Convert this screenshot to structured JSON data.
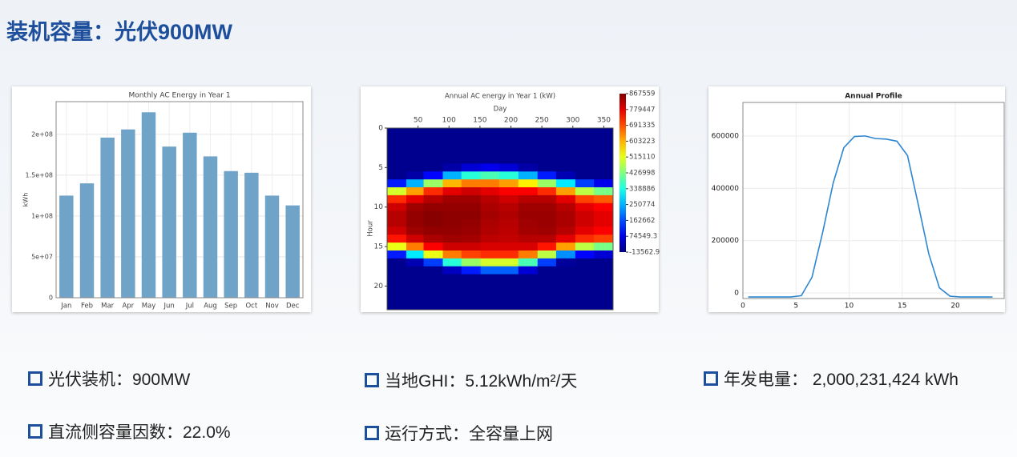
{
  "title": "装机容量：光伏900MW",
  "stats": [
    "光伏装机：900MW",
    "当地GHI：5.12kWh/m²/天",
    "年发电量： 2,000,231,424 kWh",
    "直流侧容量因数：22.0%",
    "运行方式：全容量上网"
  ],
  "chart_data": [
    {
      "type": "bar",
      "title": "Monthly AC Energy in Year 1",
      "ylabel": "kWh",
      "categories": [
        "Jan",
        "Feb",
        "Mar",
        "Apr",
        "May",
        "Jun",
        "Jul",
        "Aug",
        "Sep",
        "Oct",
        "Nov",
        "Dec"
      ],
      "values": [
        125000000,
        140000000,
        196000000,
        206000000,
        227000000,
        185000000,
        202000000,
        173000000,
        155000000,
        153000000,
        125000000,
        113000000
      ],
      "color": "#6fa3c8",
      "ylim": [
        0,
        240000000
      ],
      "yticks": [
        0,
        {
          "value": 50000000,
          "label": "5e+07"
        },
        {
          "value": 100000000,
          "label": "1e+08"
        },
        {
          "value": 150000000,
          "label": "1.5e+08"
        },
        {
          "value": 200000000,
          "label": "2e+08"
        }
      ],
      "grid": true
    },
    {
      "type": "heatmap",
      "title": "Annual AC energy in Year 1 (kW)",
      "xlabel": "Day",
      "ylabel": "Hour",
      "xbins": [
        0,
        31,
        59,
        90,
        120,
        151,
        181,
        212,
        243,
        273,
        304,
        334,
        365
      ],
      "y": [
        0,
        1,
        2,
        3,
        4,
        5,
        6,
        7,
        8,
        9,
        10,
        11,
        12,
        13,
        14,
        15,
        16,
        17,
        18,
        19,
        20,
        21,
        22,
        23
      ],
      "values": [
        [
          0,
          0,
          0,
          0,
          0,
          0,
          0,
          0,
          0,
          0,
          0,
          0
        ],
        [
          0,
          0,
          0,
          0,
          0,
          0,
          0,
          0,
          0,
          0,
          0,
          0
        ],
        [
          0,
          0,
          0,
          0,
          0,
          0,
          0,
          0,
          0,
          0,
          0,
          0
        ],
        [
          0,
          0,
          0,
          0,
          0,
          0,
          0,
          0,
          0,
          0,
          0,
          0
        ],
        [
          0,
          0,
          0,
          0,
          0,
          0,
          0,
          0,
          0,
          0,
          0,
          0
        ],
        [
          0,
          0,
          0,
          20000,
          60000,
          80000,
          60000,
          20000,
          0,
          0,
          0,
          0
        ],
        [
          0,
          20000,
          100000,
          250000,
          350000,
          380000,
          350000,
          250000,
          120000,
          30000,
          0,
          0
        ],
        [
          120000,
          250000,
          450000,
          600000,
          650000,
          650000,
          620000,
          550000,
          450000,
          300000,
          150000,
          80000
        ],
        [
          500000,
          620000,
          720000,
          780000,
          800000,
          780000,
          760000,
          760000,
          720000,
          620000,
          480000,
          420000
        ],
        [
          720000,
          780000,
          820000,
          840000,
          840000,
          820000,
          800000,
          820000,
          820000,
          780000,
          700000,
          680000
        ],
        [
          800000,
          840000,
          850000,
          850000,
          850000,
          830000,
          820000,
          840000,
          840000,
          820000,
          780000,
          760000
        ],
        [
          820000,
          850000,
          860000,
          855000,
          855000,
          835000,
          825000,
          845000,
          845000,
          830000,
          800000,
          780000
        ],
        [
          820000,
          850000,
          860000,
          855000,
          850000,
          830000,
          820000,
          840000,
          845000,
          830000,
          800000,
          780000
        ],
        [
          800000,
          840000,
          850000,
          850000,
          845000,
          825000,
          815000,
          835000,
          840000,
          820000,
          780000,
          760000
        ],
        [
          740000,
          800000,
          830000,
          840000,
          835000,
          815000,
          810000,
          820000,
          820000,
          780000,
          720000,
          700000
        ],
        [
          520000,
          650000,
          760000,
          800000,
          800000,
          790000,
          790000,
          790000,
          740000,
          620000,
          480000,
          420000
        ],
        [
          120000,
          300000,
          520000,
          650000,
          700000,
          720000,
          720000,
          650000,
          480000,
          220000,
          100000,
          60000
        ],
        [
          0,
          30000,
          150000,
          350000,
          450000,
          500000,
          500000,
          380000,
          150000,
          10000,
          0,
          0
        ],
        [
          0,
          0,
          0,
          40000,
          120000,
          180000,
          180000,
          60000,
          0,
          0,
          0,
          0
        ],
        [
          0,
          0,
          0,
          0,
          0,
          0,
          0,
          0,
          0,
          0,
          0,
          0
        ],
        [
          0,
          0,
          0,
          0,
          0,
          0,
          0,
          0,
          0,
          0,
          0,
          0
        ],
        [
          0,
          0,
          0,
          0,
          0,
          0,
          0,
          0,
          0,
          0,
          0,
          0
        ],
        [
          0,
          0,
          0,
          0,
          0,
          0,
          0,
          0,
          0,
          0,
          0,
          0
        ],
        [
          0,
          0,
          0,
          0,
          0,
          0,
          0,
          0,
          0,
          0,
          0,
          0
        ]
      ],
      "colormap": "jet",
      "zlim": [
        -13562.9,
        867559
      ],
      "colorbar_ticks": [
        867559,
        779447,
        691335,
        603223,
        515110,
        426998,
        338886,
        250774,
        162662,
        74549.3,
        -13562.9
      ],
      "xlim": [
        0,
        365
      ],
      "ylim": [
        0,
        23
      ],
      "y_inverted": true,
      "xticks": [
        50,
        100,
        150,
        200,
        250,
        300,
        350
      ],
      "yticks": [
        0,
        5,
        10,
        15,
        20
      ]
    },
    {
      "type": "line",
      "title": "Annual Profile",
      "x": [
        0.5,
        1.5,
        2.5,
        3.5,
        4.5,
        5.5,
        6.5,
        7.5,
        8.5,
        9.5,
        10.5,
        11.5,
        12.5,
        13.5,
        14.5,
        15.5,
        16.5,
        17.5,
        18.5,
        19.5,
        20.5,
        21.5,
        22.5,
        23.5
      ],
      "values": [
        -15000,
        -15000,
        -15000,
        -15000,
        -15000,
        -10000,
        60000,
        230000,
        420000,
        555000,
        598000,
        600000,
        590000,
        588000,
        580000,
        525000,
        340000,
        150000,
        20000,
        -12000,
        -15000,
        -15000,
        -15000,
        -15000
      ],
      "color": "#2f86d0",
      "xlim": [
        0,
        24.6
      ],
      "ylim": [
        -21000,
        728000
      ],
      "xticks": [
        0,
        5,
        10,
        15,
        20
      ],
      "yticks": [
        0,
        200000,
        400000,
        600000
      ],
      "grid": true
    }
  ]
}
